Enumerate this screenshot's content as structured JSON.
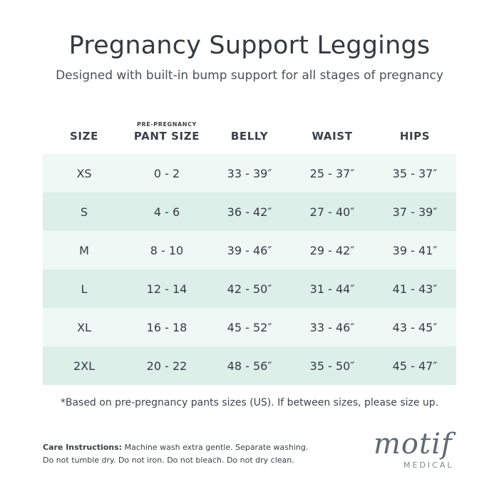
{
  "header": {
    "title": "Pregnancy Support Leggings",
    "subtitle": "Designed with built-in bump support for all stages of pregnancy"
  },
  "table": {
    "columns": [
      {
        "label": "SIZE",
        "sup": ""
      },
      {
        "label": "PANT SIZE",
        "sup": "PRE-PREGNANCY"
      },
      {
        "label": "BELLY",
        "sup": ""
      },
      {
        "label": "WAIST",
        "sup": ""
      },
      {
        "label": "HIPS",
        "sup": ""
      }
    ],
    "rows": [
      [
        "XS",
        "0 - 2",
        "33 - 39″",
        "25 - 37″",
        "35 - 37″"
      ],
      [
        "S",
        "4 - 6",
        "36 - 42″",
        "27 - 40″",
        "37 - 39″"
      ],
      [
        "M",
        "8 - 10",
        "39 - 46″",
        "29 - 42″",
        "39 - 41″"
      ],
      [
        "L",
        "12 - 14",
        "42 - 50″",
        "31 - 44″",
        "41 - 43″"
      ],
      [
        "XL",
        "16 - 18",
        "45 - 52″",
        "33 - 46″",
        "43 - 45″"
      ],
      [
        "2XL",
        "20 - 22",
        "48 - 56″",
        "35 - 50″",
        "45 - 47″"
      ]
    ]
  },
  "note": "*Based on pre-pregnancy pants sizes (US). If between sizes, please size up.",
  "care": {
    "label": "Care Instructions:",
    "line1": "Machine wash extra gentle. Separate washing.",
    "line2": "Do not tumble dry. Do not iron. Do not bleach. Do not dry clean."
  },
  "logo": {
    "word": "motif",
    "sub": "MEDICAL"
  },
  "colors": {
    "row_light": "#eef8f4",
    "row_dark": "#dcefe9",
    "text": "#343a3f"
  }
}
